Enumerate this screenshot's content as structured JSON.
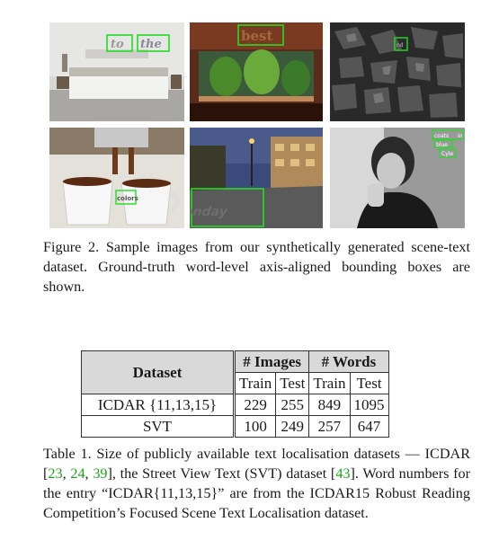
{
  "figure": {
    "caption": "Figure 2. Sample images from our synthetically generated scene-text dataset. Ground-truth word-level axis-aligned bounding boxes are shown.",
    "images": [
      {
        "words": [
          "to",
          "the"
        ]
      },
      {
        "words": [
          "best"
        ]
      },
      {
        "words": [
          "nd"
        ]
      },
      {
        "words": [
          "colors"
        ]
      },
      {
        "words": [
          "monday"
        ]
      },
      {
        "words": [
          "coats",
          "in",
          "blue",
          "Cyle"
        ]
      }
    ],
    "box_color": "#22dd22"
  },
  "table": {
    "header_dataset": "Dataset",
    "header_images": "# Images",
    "header_words": "# Words",
    "sub_train": "Train",
    "sub_test": "Test",
    "rows": [
      {
        "name": "ICDAR {11,13,15}",
        "img_train": "229",
        "img_test": "255",
        "wrd_train": "849",
        "wrd_test": "1095"
      },
      {
        "name": "SVT",
        "img_train": "100",
        "img_test": "249",
        "wrd_train": "257",
        "wrd_test": "647"
      }
    ]
  },
  "table_caption": {
    "part1": "Table 1. Size of publicly available text localisation datasets — ICDAR [",
    "cite1": "23",
    "sep1": ", ",
    "cite2": "24",
    "sep2": ", ",
    "cite3": "39",
    "part2": "], the Street View Text (SVT) dataset [",
    "cite4": "43",
    "part3": "]. Word numbers for the entry “ICDAR{11,13,15}” are from the ICDAR15 Robust Reading Competition’s Focused Scene Text Localisation dataset."
  }
}
